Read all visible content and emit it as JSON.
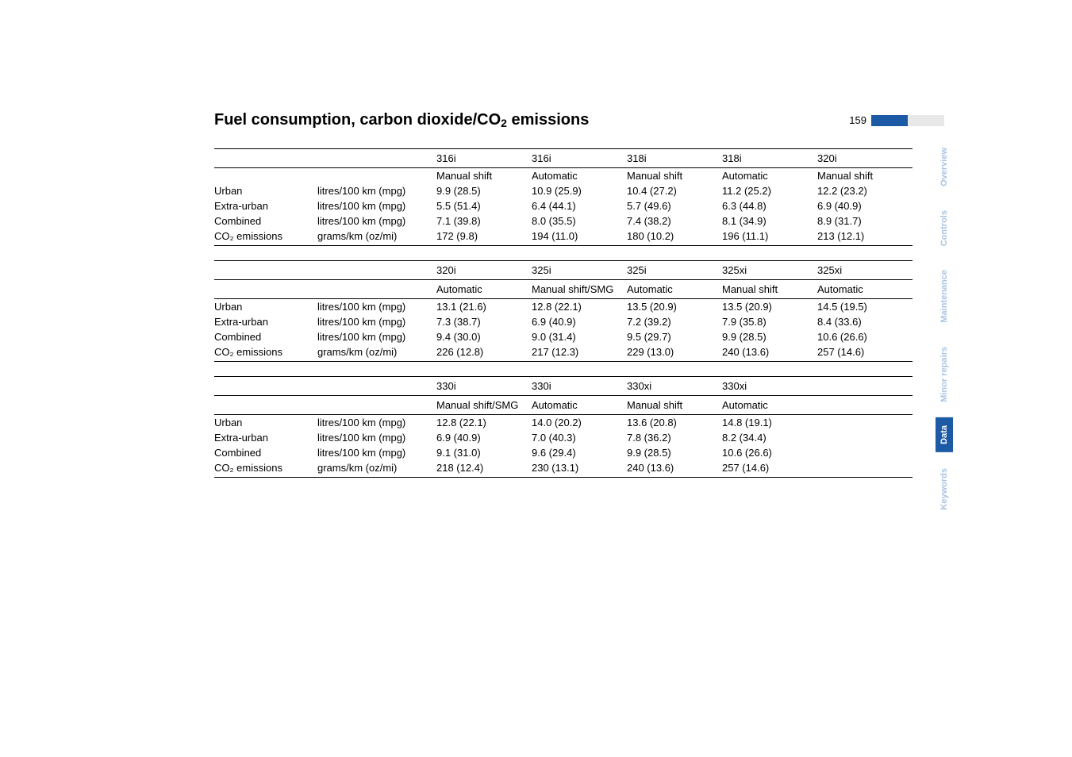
{
  "page": {
    "title_prefix": "Fuel consumption, carbon dioxide/CO",
    "title_sub": "2",
    "title_suffix": " emissions",
    "number": "159"
  },
  "colors": {
    "brand": "#1c5aa6",
    "dim_tab": "#a9c4e2",
    "bar_light": "#e8e8e8"
  },
  "tabs": {
    "overview": "Overview",
    "controls": "Controls",
    "maintenance": "Maintenance",
    "minor_repairs": "Minor repairs",
    "data": "Data",
    "keywords": "Keywords"
  },
  "row_labels": {
    "urban": "Urban",
    "extra_urban": "Extra-urban",
    "combined": "Combined",
    "co2": "CO₂ emissions"
  },
  "units": {
    "lkm": "litres/100 km (mpg)",
    "gkm": "grams/km (oz/mi)"
  },
  "trans": {
    "manual_shift": "Manual shift",
    "automatic": "Automatic",
    "manual_smg": "Manual shift/SMG"
  },
  "t1": {
    "models": {
      "c1": "316i",
      "c2": "316i",
      "c3": "318i",
      "c4": "318i",
      "c5": "320i"
    },
    "trans": {
      "c1": "manual_shift",
      "c2": "automatic",
      "c3": "manual_shift",
      "c4": "automatic",
      "c5": "manual_shift"
    },
    "urban": {
      "c1": "9.9 (28.5)",
      "c2": "10.9 (25.9)",
      "c3": "10.4 (27.2)",
      "c4": "11.2 (25.2)",
      "c5": "12.2 (23.2)"
    },
    "extra_urban": {
      "c1": "5.5 (51.4)",
      "c2": "6.4 (44.1)",
      "c3": "5.7 (49.6)",
      "c4": "6.3 (44.8)",
      "c5": "6.9 (40.9)"
    },
    "combined": {
      "c1": "7.1 (39.8)",
      "c2": "8.0 (35.5)",
      "c3": "7.4 (38.2)",
      "c4": "8.1 (34.9)",
      "c5": "8.9 (31.7)"
    },
    "co2": {
      "c1": "172 (9.8)",
      "c2": "194 (11.0)",
      "c3": "180 (10.2)",
      "c4": "196 (11.1)",
      "c5": "213 (12.1)"
    }
  },
  "t2": {
    "models": {
      "c1": "320i",
      "c2": "325i",
      "c3": "325i",
      "c4": "325xi",
      "c5": "325xi"
    },
    "trans": {
      "c1": "automatic",
      "c2": "manual_smg",
      "c3": "automatic",
      "c4": "manual_shift",
      "c5": "automatic"
    },
    "urban": {
      "c1": "13.1 (21.6)",
      "c2": "12.8 (22.1)",
      "c3": "13.5 (20.9)",
      "c4": "13.5 (20.9)",
      "c5": "14.5 (19.5)"
    },
    "extra_urban": {
      "c1": "7.3 (38.7)",
      "c2": "6.9 (40.9)",
      "c3": "7.2 (39.2)",
      "c4": "7.9 (35.8)",
      "c5": "8.4 (33.6)"
    },
    "combined": {
      "c1": "9.4 (30.0)",
      "c2": "9.0 (31.4)",
      "c3": "9.5 (29.7)",
      "c4": "9.9 (28.5)",
      "c5": "10.6 (26.6)"
    },
    "co2": {
      "c1": "226 (12.8)",
      "c2": "217 (12.3)",
      "c3": "229 (13.0)",
      "c4": "240 (13.6)",
      "c5": "257 (14.6)"
    }
  },
  "t3": {
    "models": {
      "c1": "330i",
      "c2": "330i",
      "c3": "330xi",
      "c4": "330xi"
    },
    "trans": {
      "c1": "manual_smg",
      "c2": "automatic",
      "c3": "manual_shift",
      "c4": "automatic"
    },
    "urban": {
      "c1": "12.8 (22.1)",
      "c2": "14.0 (20.2)",
      "c3": "13.6 (20.8)",
      "c4": "14.8 (19.1)"
    },
    "extra_urban": {
      "c1": "6.9 (40.9)",
      "c2": "7.0 (40.3)",
      "c3": "7.8 (36.2)",
      "c4": "8.2 (34.4)"
    },
    "combined": {
      "c1": "9.1 (31.0)",
      "c2": "9.6 (29.4)",
      "c3": "9.9 (28.5)",
      "c4": "10.6 (26.6)"
    },
    "co2": {
      "c1": "218 (12.4)",
      "c2": "230 (13.1)",
      "c3": "240 (13.6)",
      "c4": "257 (14.6)"
    }
  }
}
